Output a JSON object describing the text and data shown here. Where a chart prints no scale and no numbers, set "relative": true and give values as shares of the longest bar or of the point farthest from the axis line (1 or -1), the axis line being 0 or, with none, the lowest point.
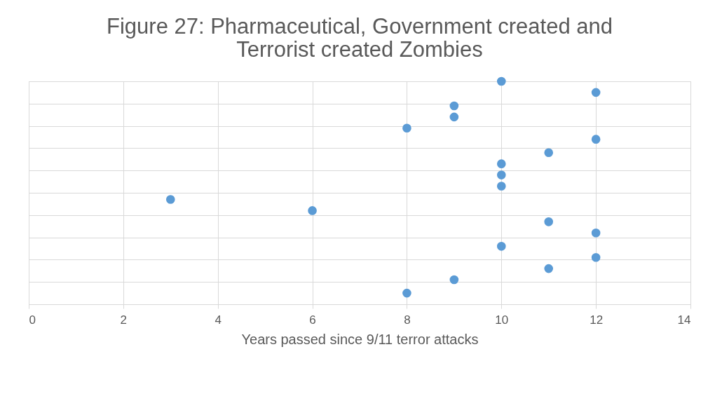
{
  "chart_data": {
    "type": "scatter",
    "title": "Figure 27: Pharmaceutical, Government created and\nTerrorist created Zombies",
    "xlabel": "Years passed since 9/11 terror attacks",
    "x": [
      10,
      12,
      9,
      9,
      8,
      12,
      11,
      10,
      10,
      10,
      3,
      6,
      11,
      12,
      10,
      12,
      11,
      9,
      8
    ],
    "relative": true,
    "series": [
      {
        "color": "#5b9bd5",
        "values": [
          1,
          0.95,
          0.89,
          0.84,
          0.79,
          0.74,
          0.68,
          0.63,
          0.58,
          0.53,
          0.47,
          0.42,
          0.37,
          0.32,
          0.26,
          0.21,
          0.16,
          0.11,
          0.05
        ]
      }
    ],
    "xlim": [
      0,
      14
    ],
    "xticks": [
      0,
      2,
      4,
      6,
      8,
      10,
      12,
      14
    ],
    "grid": true,
    "marker": "circle",
    "legend": false,
    "tick_labels": "x"
  }
}
